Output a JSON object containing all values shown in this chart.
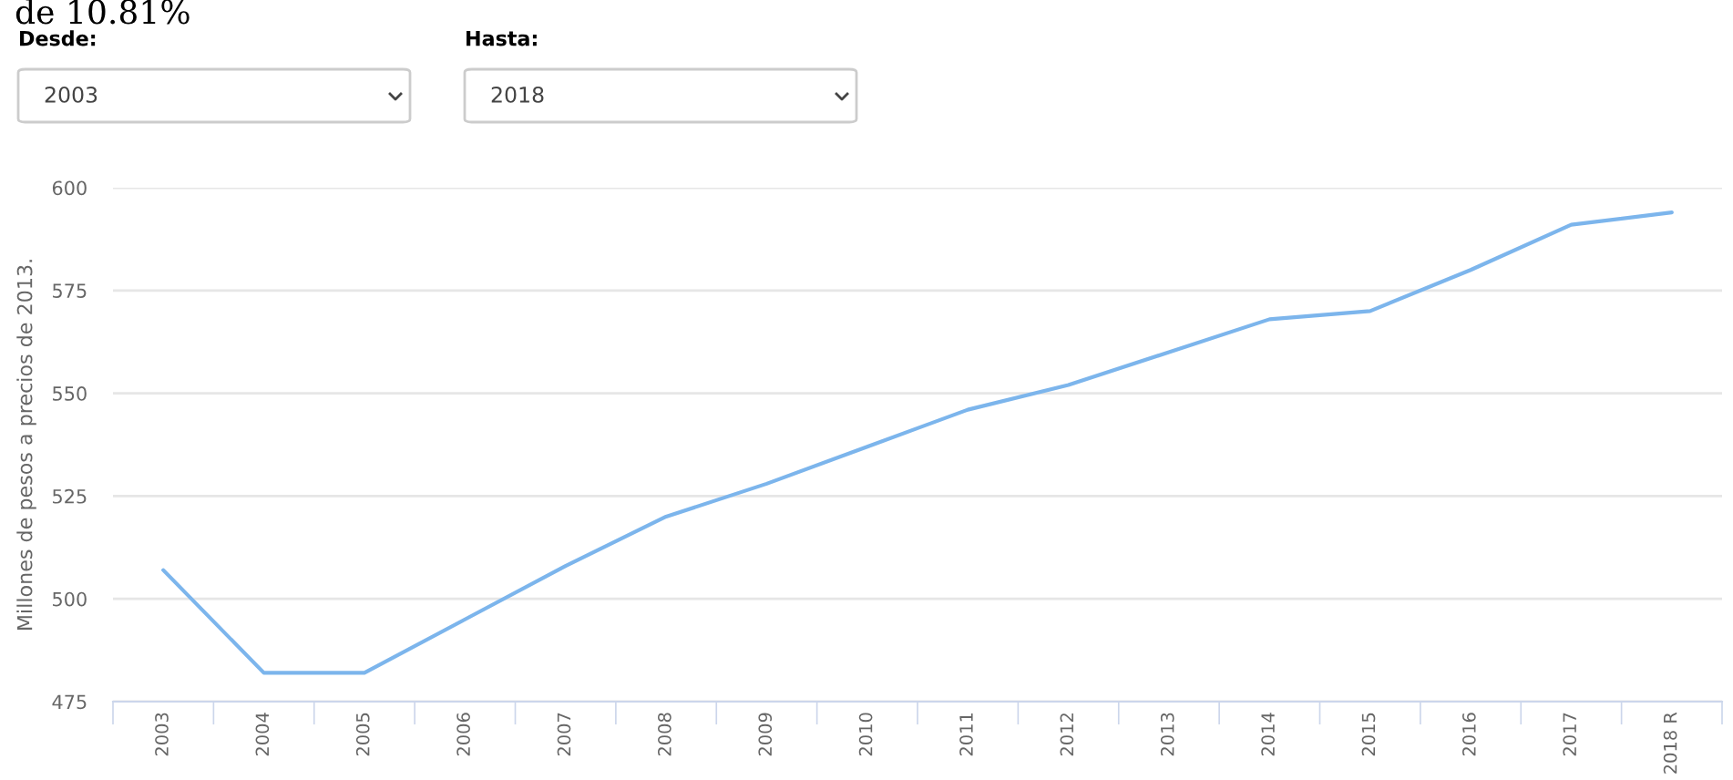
{
  "chart_data": {
    "type": "line",
    "ylabel": "Millones de pesos a precios de 2013.",
    "annotations": [
      "de 10.81%",
      "Desde:",
      "2003",
      "Hasta:",
      "2018"
    ],
    "categories": [
      "2003",
      "2004",
      "2005",
      "2006",
      "2007",
      "2008",
      "2009",
      "2010",
      "2011",
      "2012",
      "2013",
      "2014",
      "2015",
      "2016",
      "2017",
      "2018 R"
    ],
    "series": [
      {
        "color": "#7cb5ec",
        "values": [
          507,
          482,
          482,
          495,
          508,
          520,
          528,
          537,
          546,
          552,
          560,
          568,
          570,
          580,
          591,
          594
        ]
      }
    ],
    "ylim": [
      475,
      600
    ],
    "yticks": [
      475,
      500,
      525,
      550,
      575,
      600
    ],
    "grid": "y",
    "legend": false,
    "marker": "none",
    "line_style": "solid"
  }
}
